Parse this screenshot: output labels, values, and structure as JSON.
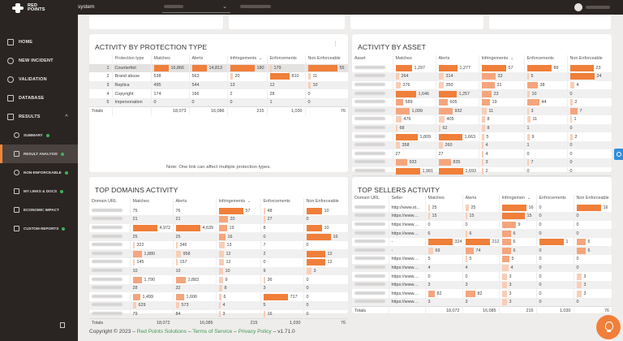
{
  "app": {
    "brand": [
      "RED",
      "POINTS"
    ],
    "context_label": "system"
  },
  "topbar": {
    "client_select_value": "",
    "search_context": "",
    "user_name": ""
  },
  "sidebar": {
    "items": [
      {
        "label": "HOME",
        "icon": "home-icon"
      },
      {
        "label": "NEW INCIDENT",
        "icon": "plus-circle-icon"
      },
      {
        "label": "VALIDATION",
        "icon": "check-circle-icon"
      },
      {
        "label": "DATABASE",
        "icon": "database-icon"
      },
      {
        "label": "RESULTS",
        "icon": "chart-icon",
        "expanded": true
      }
    ],
    "sub_items": [
      {
        "label": "SUMMARY",
        "icon": "clock-icon",
        "status": "green"
      },
      {
        "label": "RESULT ANALYSIS",
        "icon": "document-icon",
        "status": "green",
        "active": true
      },
      {
        "label": "NON-ENFORCEABLE",
        "icon": "ban-icon",
        "status": "green"
      },
      {
        "label": "MY LINKS & DOCS",
        "icon": "link-icon",
        "status": "green"
      },
      {
        "label": "ECONOMIC IMPACT",
        "icon": "money-icon"
      },
      {
        "label": "CUSTOM REPORTS",
        "icon": "report-icon",
        "status": "green"
      }
    ]
  },
  "protection_type": {
    "title": "ACTIVITY BY PROTECTION TYPE",
    "columns": [
      "",
      "Protection type",
      "Matches",
      "Alerts",
      "Infringements",
      "Enforcements",
      "Non Enforceable"
    ],
    "rows": [
      {
        "n": "1",
        "type": "Counterfeit",
        "matches": "16,866",
        "alerts": "14,813",
        "infringements": "180",
        "enforcements": "179",
        "non_enforceable": "55"
      },
      {
        "n": "2",
        "type": "Brand abuse",
        "matches": "538",
        "alerts": "563",
        "infringements": "20",
        "enforcements": "810",
        "non_enforceable": "11"
      },
      {
        "n": "3",
        "type": "Replica",
        "matches": "495",
        "alerts": "544",
        "infringements": "13",
        "enforcements": "12",
        "non_enforceable": "10"
      },
      {
        "n": "4",
        "type": "Copyright",
        "matches": "174",
        "alerts": "166",
        "infringements": "2",
        "enforcements": "28",
        "non_enforceable": "0"
      },
      {
        "n": "5",
        "type": "Impersonation",
        "matches": "0",
        "alerts": "0",
        "infringements": "0",
        "enforcements": "1",
        "non_enforceable": "0"
      }
    ],
    "totals": {
      "label": "Totals",
      "matches": "18,073",
      "alerts": "16,086",
      "infringements": "215",
      "enforcements": "1,030",
      "non_enforceable": "76"
    },
    "note": "Note: One link can affect multiple protection types."
  },
  "asset": {
    "title": "ACTIVITY BY ASSET",
    "columns": [
      "Asset",
      "Matches",
      "Alerts",
      "Infringements",
      "Enforcements",
      "Non Enforceable"
    ],
    "rows": [
      {
        "matches": "1,297",
        "alerts": "1,277",
        "infringements": "57",
        "enforcements": "89",
        "non_enforceable": "23"
      },
      {
        "matches": "264",
        "alerts": "314",
        "infringements": "33",
        "enforcements": "5",
        "non_enforceable": "24"
      },
      {
        "matches": "376",
        "alerts": "350",
        "infringements": "31",
        "enforcements": "38",
        "non_enforceable": "4"
      },
      {
        "matches": "1,646",
        "alerts": "1,257",
        "infringements": "23",
        "enforcements": "10",
        "non_enforceable": "0"
      },
      {
        "matches": "589",
        "alerts": "605",
        "infringements": "19",
        "enforcements": "44",
        "non_enforceable": "2"
      },
      {
        "matches": "1,099",
        "alerts": "932",
        "infringements": "11",
        "enforcements": "3",
        "non_enforceable": "7"
      },
      {
        "matches": "476",
        "alerts": "405",
        "infringements": "8",
        "enforcements": "11",
        "non_enforceable": "1"
      },
      {
        "matches": "68",
        "alerts": "62",
        "infringements": "8",
        "enforcements": "1",
        "non_enforceable": "0"
      },
      {
        "matches": "1,809",
        "alerts": "1,663",
        "infringements": "5",
        "enforcements": "9",
        "non_enforceable": "2"
      },
      {
        "matches": "358",
        "alerts": "260",
        "infringements": "4",
        "enforcements": "1",
        "non_enforceable": "0"
      },
      {
        "matches": "27",
        "alerts": "27",
        "infringements": "4",
        "enforcements": "0",
        "non_enforceable": "0"
      },
      {
        "matches": "933",
        "alerts": "835",
        "infringements": "3",
        "enforcements": "7",
        "non_enforceable": "0"
      },
      {
        "matches": "1,981",
        "alerts": "1,693",
        "infringements": "2",
        "enforcements": "0",
        "non_enforceable": "0"
      }
    ],
    "totals": {
      "label": "Totals",
      "matches": "18,072",
      "alerts": "16,085",
      "infringements": "215",
      "enforcements": "1,030",
      "non_enforceable": "76"
    }
  },
  "domains": {
    "title": "TOP DOMAINS ACTIVITY",
    "columns": [
      "Domain URL",
      "Matches",
      "Alerts",
      "Infringements",
      "Enforcements",
      "Non Enforceable"
    ],
    "rows": [
      {
        "matches": "75",
        "alerts": "76",
        "infringements": "57",
        "enforcements": "48",
        "non_enforceable": "10"
      },
      {
        "matches": "21",
        "alerts": "21",
        "infringements": "20",
        "enforcements": "27",
        "non_enforceable": "0"
      },
      {
        "matches": "4,972",
        "alerts": "4,639",
        "infringements": "19",
        "enforcements": "8",
        "non_enforceable": "10"
      },
      {
        "matches": "25",
        "alerts": "25",
        "infringements": "16",
        "enforcements": "0",
        "non_enforceable": "16"
      },
      {
        "matches": "322",
        "alerts": "346",
        "infringements": "13",
        "enforcements": "7",
        "non_enforceable": "0"
      },
      {
        "matches": "1,880",
        "alerts": "958",
        "infringements": "12",
        "enforcements": "2",
        "non_enforceable": "12"
      },
      {
        "matches": "145",
        "alerts": "157",
        "infringements": "12",
        "enforcements": "0",
        "non_enforceable": "12"
      },
      {
        "matches": "10",
        "alerts": "10",
        "infringements": "10",
        "enforcements": "9",
        "non_enforceable": "3"
      },
      {
        "matches": "1,790",
        "alerts": "1,883",
        "infringements": "9",
        "enforcements": "36",
        "non_enforceable": "0"
      },
      {
        "matches": "28",
        "alerts": "32",
        "infringements": "8",
        "enforcements": "3",
        "non_enforceable": "0"
      },
      {
        "matches": "1,499",
        "alerts": "1,606",
        "infringements": "6",
        "enforcements": "717",
        "non_enforceable": "0"
      },
      {
        "matches": "629",
        "alerts": "573",
        "infringements": "4",
        "enforcements": "5",
        "non_enforceable": "0"
      },
      {
        "matches": "79",
        "alerts": "84",
        "infringements": "3",
        "enforcements": "16",
        "non_enforceable": "0"
      }
    ],
    "totals": {
      "label": "Totals",
      "matches": "18,072",
      "alerts": "16,085",
      "infringements": "215",
      "enforcements": "1,030",
      "non_enforceable": "76"
    }
  },
  "sellers": {
    "title": "TOP SELLERS ACTIVITY",
    "columns": [
      "Domain URL",
      "Seller",
      "Matches",
      "Alerts",
      "Infringemen",
      "Enforcements",
      "Non Enforceable"
    ],
    "rows": [
      {
        "seller": "http://www.st...",
        "matches": "25",
        "alerts": "25",
        "infringements": "16",
        "enforcements": "0",
        "non_enforceable": "16"
      },
      {
        "seller": "https://www....",
        "matches": "15",
        "alerts": "15",
        "infringements": "15",
        "enforcements": "0",
        "non_enforceable": "0"
      },
      {
        "seller": "https://www....",
        "matches": "0",
        "alerts": "0",
        "infringements": "9",
        "enforcements": "0",
        "non_enforceable": "0"
      },
      {
        "seller": "https://www....",
        "matches": "6",
        "alerts": "6",
        "infringements": "6",
        "enforcements": "0",
        "non_enforceable": "0"
      },
      {
        "seller": "-",
        "matches": "324",
        "alerts": "212",
        "infringements": "6",
        "enforcements": "1",
        "non_enforceable": "6"
      },
      {
        "seller": "-",
        "matches": "69",
        "alerts": "74",
        "infringements": "6",
        "enforcements": "0",
        "non_enforceable": "6"
      },
      {
        "seller": "https://www....",
        "matches": "5",
        "alerts": "5",
        "infringements": "5",
        "enforcements": "0",
        "non_enforceable": "0"
      },
      {
        "seller": "https://www....",
        "matches": "4",
        "alerts": "4",
        "infringements": "4",
        "enforcements": "0",
        "non_enforceable": "0"
      },
      {
        "seller": "https://www....",
        "matches": "0",
        "alerts": "0",
        "infringements": "3",
        "enforcements": "0",
        "non_enforceable": "3"
      },
      {
        "seller": "https://www....",
        "matches": "3",
        "alerts": "3",
        "infringements": "3",
        "enforcements": "0",
        "non_enforceable": "3"
      },
      {
        "seller": "https://www....",
        "matches": "82",
        "alerts": "82",
        "infringements": "3",
        "enforcements": "0",
        "non_enforceable": "3"
      },
      {
        "seller": "https://www....",
        "matches": "3",
        "alerts": "3",
        "infringements": "3",
        "enforcements": "0",
        "non_enforceable": "0"
      }
    ],
    "totals": {
      "label": "Totals",
      "matches": "18,072",
      "alerts": "16,085",
      "infringements": "215",
      "enforcements": "1,030",
      "non_enforceable": "76"
    }
  },
  "footer": {
    "copyright": "Copyright © 2023 –",
    "company": "Red Points Solutions",
    "sep1": "–",
    "terms": "Terms of Service",
    "sep2": "–",
    "privacy": "Privacy Policy",
    "version": "– v1.71.0"
  },
  "colors": {
    "accent": "#f07f3a",
    "sidebar_bg": "#2a2523",
    "status_green": "#3fb35a",
    "link_green": "#3d9a52",
    "float_blue": "#2f8fe0"
  }
}
